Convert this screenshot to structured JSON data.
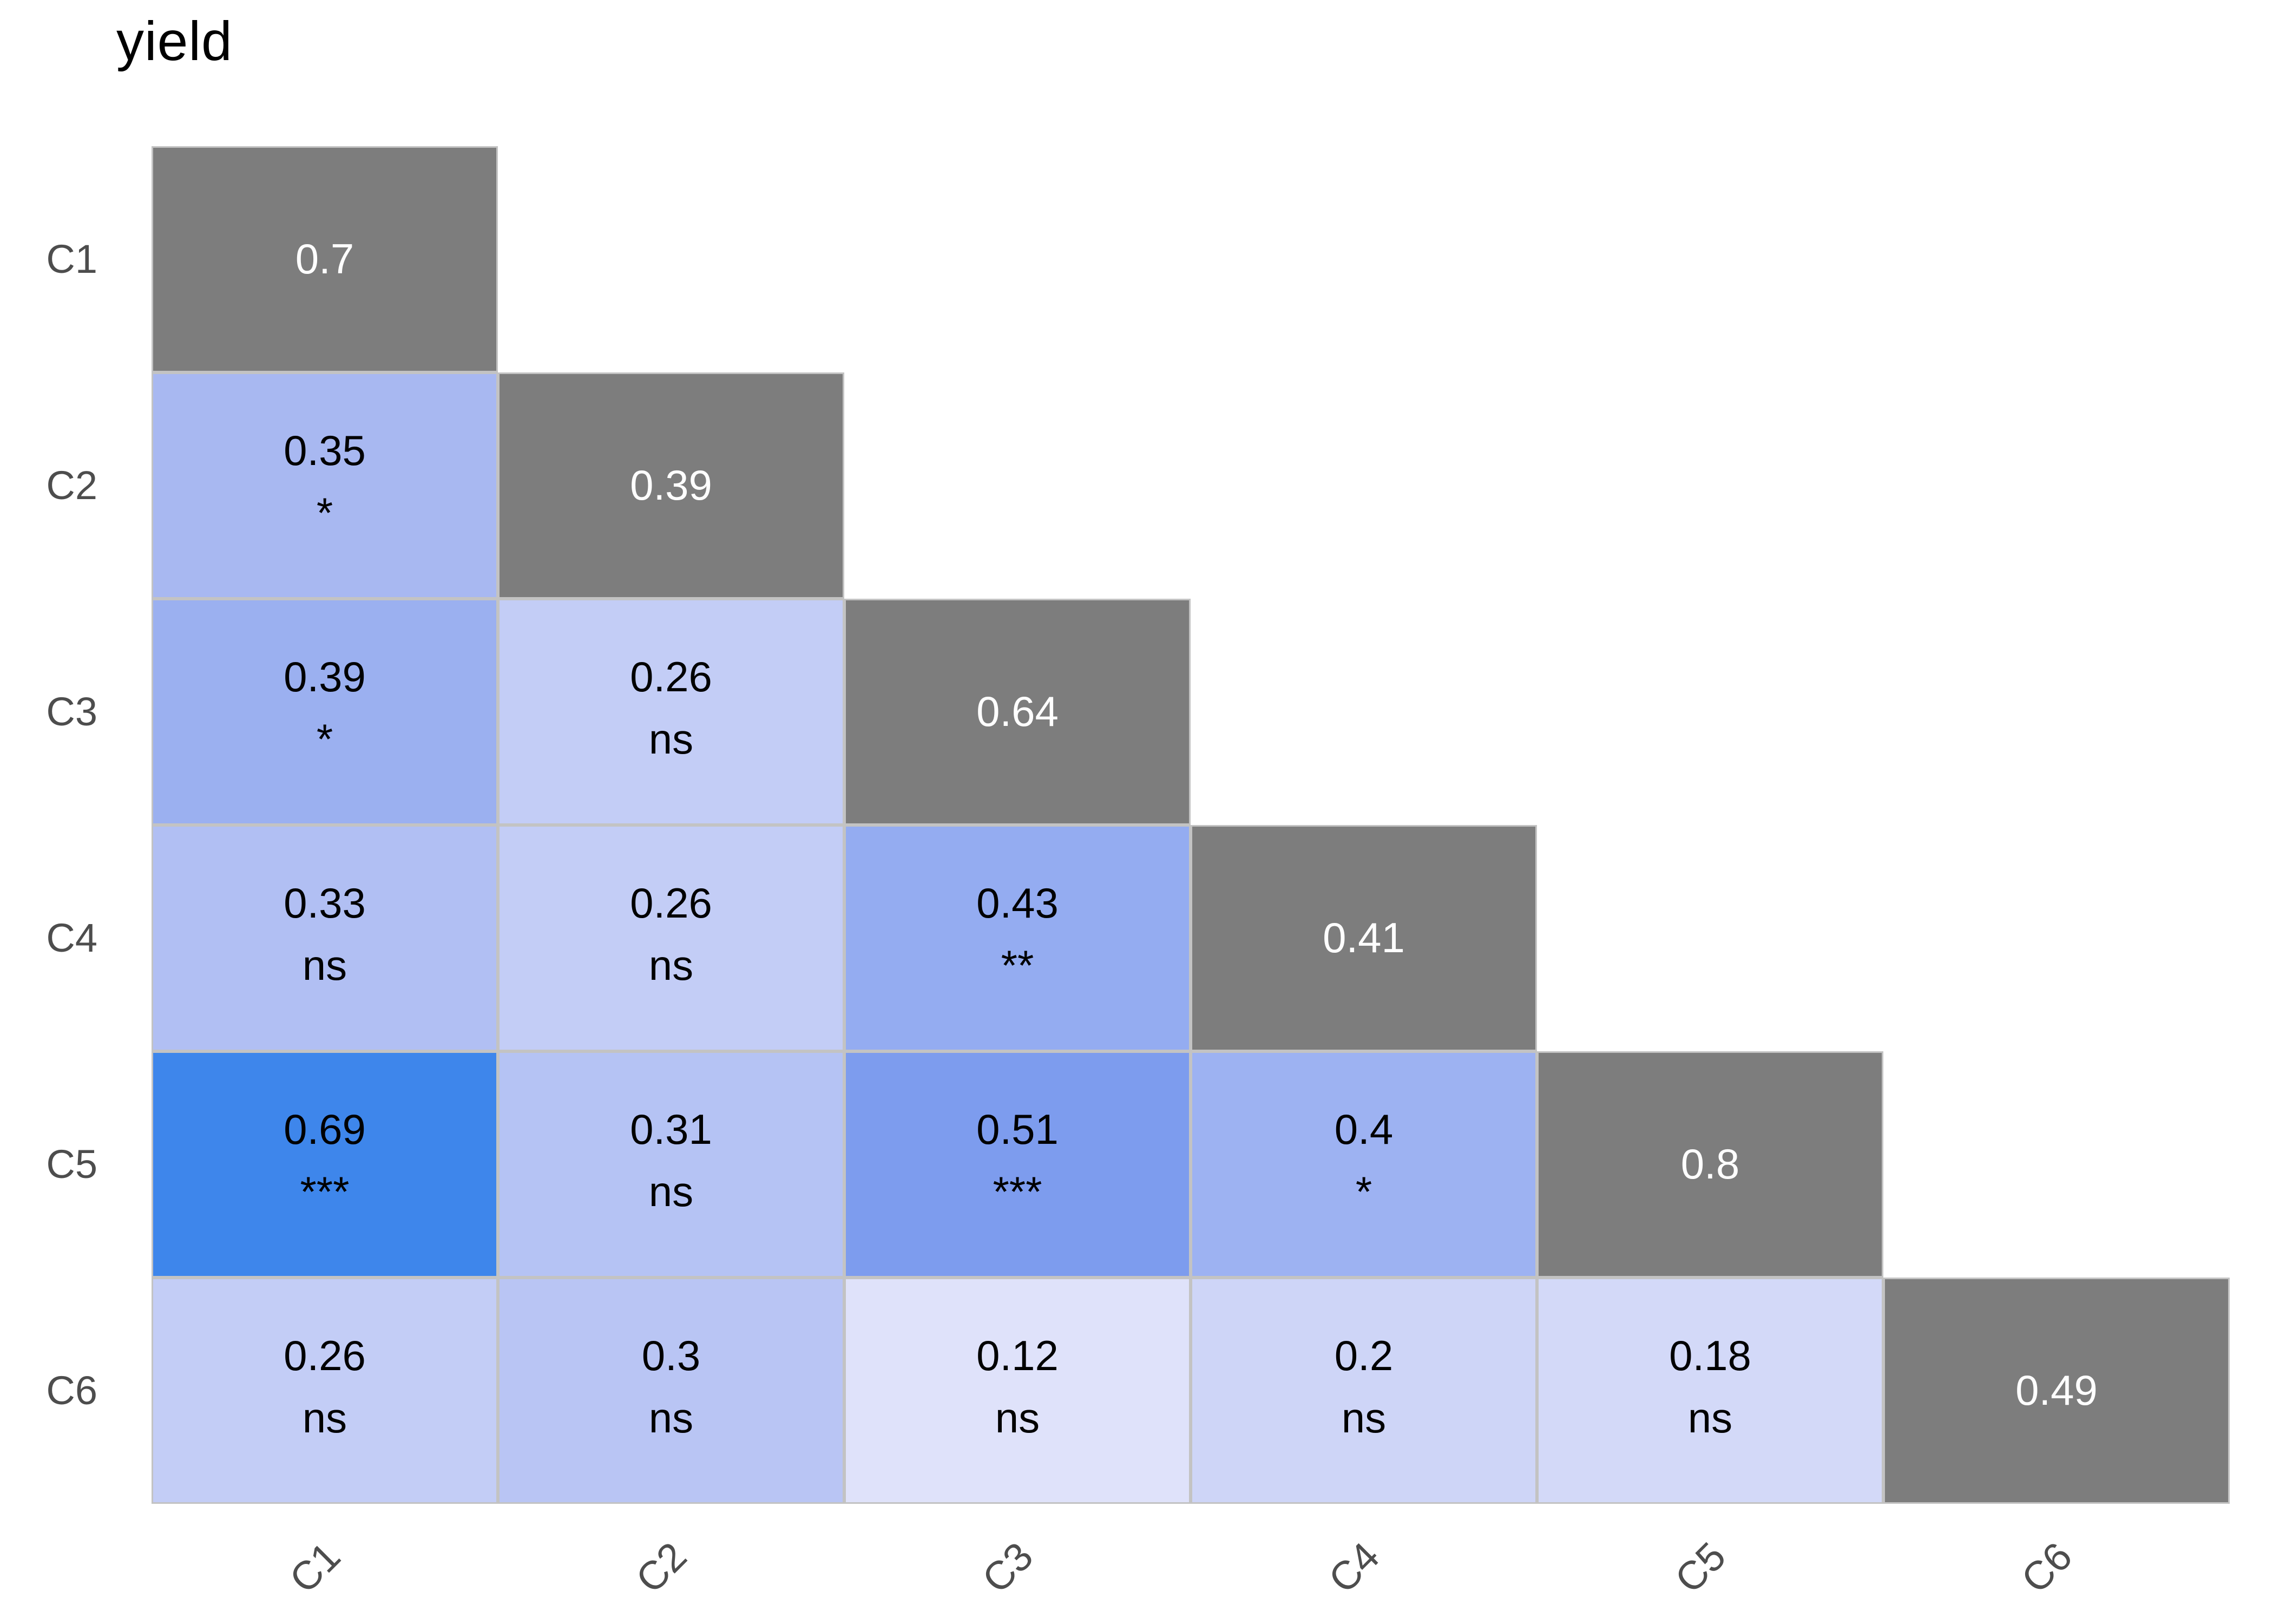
{
  "chart_data": {
    "type": "heatmap",
    "subtype": "lower-triangular correlation matrix with significance labels",
    "title": "yield",
    "variables": [
      "C1",
      "C2",
      "C3",
      "C4",
      "C5",
      "C6"
    ],
    "x_axis_labels": [
      "C1",
      "C2",
      "C3",
      "C4",
      "C5",
      "C6"
    ],
    "y_axis_labels": [
      "C1",
      "C2",
      "C3",
      "C4",
      "C5",
      "C6"
    ],
    "x_label_rotation_deg": -45,
    "legend": "none",
    "grid_on": false,
    "diagonal": {
      "values": [
        0.7,
        0.39,
        0.64,
        0.41,
        0.8,
        0.49
      ],
      "bg": "#7d7d7d",
      "text_color": "#ffffff"
    },
    "cells": [
      {
        "row": "C2",
        "col": "C1",
        "value": 0.35,
        "sig": "*",
        "bg": "#a8b8f1"
      },
      {
        "row": "C3",
        "col": "C1",
        "value": 0.39,
        "sig": "*",
        "bg": "#9bb0f0"
      },
      {
        "row": "C3",
        "col": "C2",
        "value": 0.26,
        "sig": "ns",
        "bg": "#c3cdf6"
      },
      {
        "row": "C4",
        "col": "C1",
        "value": 0.33,
        "sig": "ns",
        "bg": "#b1bff3"
      },
      {
        "row": "C4",
        "col": "C2",
        "value": 0.26,
        "sig": "ns",
        "bg": "#c3cdf6"
      },
      {
        "row": "C4",
        "col": "C3",
        "value": 0.43,
        "sig": "**",
        "bg": "#94acf1"
      },
      {
        "row": "C5",
        "col": "C1",
        "value": 0.69,
        "sig": "***",
        "bg": "#3e86eb"
      },
      {
        "row": "C5",
        "col": "C2",
        "value": 0.31,
        "sig": "ns",
        "bg": "#b5c3f4"
      },
      {
        "row": "C5",
        "col": "C3",
        "value": 0.51,
        "sig": "***",
        "bg": "#7d9cee"
      },
      {
        "row": "C5",
        "col": "C4",
        "value": 0.4,
        "sig": "*",
        "bg": "#9db2f2"
      },
      {
        "row": "C6",
        "col": "C1",
        "value": 0.26,
        "sig": "ns",
        "bg": "#c3cdf6"
      },
      {
        "row": "C6",
        "col": "C2",
        "value": 0.3,
        "sig": "ns",
        "bg": "#b9c5f4"
      },
      {
        "row": "C6",
        "col": "C3",
        "value": 0.12,
        "sig": "ns",
        "bg": "#dfe2fa"
      },
      {
        "row": "C6",
        "col": "C4",
        "value": 0.2,
        "sig": "ns",
        "bg": "#ced5f7"
      },
      {
        "row": "C6",
        "col": "C5",
        "value": 0.18,
        "sig": "ns",
        "bg": "#d3d9f8"
      }
    ],
    "cell_text_color": "#000000",
    "axis_label_color": "#4d4d4d",
    "grid_line_color": "#c3c3c3",
    "background": "#ffffff"
  }
}
